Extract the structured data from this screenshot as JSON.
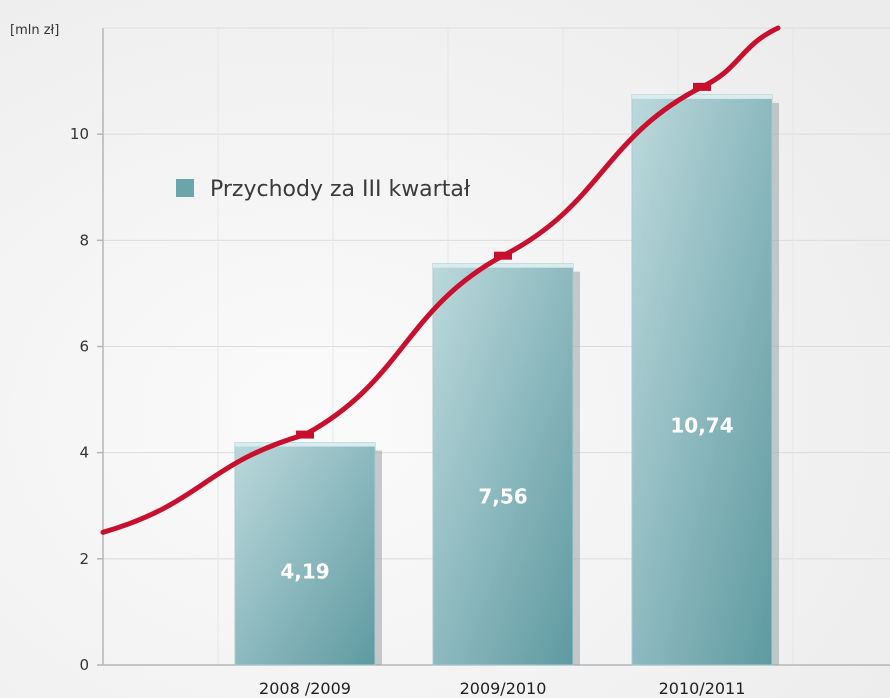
{
  "chart_data": {
    "type": "bar",
    "unit_label": "[mln zł]",
    "categories": [
      "2008 /2009",
      "2009/2010",
      "2010/2011"
    ],
    "series": [
      {
        "name": "Przychody za III kwartał",
        "values": [
          4.19,
          7.56,
          10.74
        ]
      }
    ],
    "data_labels": [
      "4,19",
      "7,56",
      "10,74"
    ],
    "y_ticks": [
      "0",
      "2",
      "4",
      "6",
      "8",
      "10"
    ],
    "ylim": [
      0,
      12
    ],
    "grid": true,
    "legend_placement": "upper-left",
    "trend_line": {
      "color": "#c8102e",
      "direction": "rising"
    },
    "colors": {
      "bar_light": "#bcd9dc",
      "bar_dark": "#5e9aa1",
      "bar_shadow": "#9aa3a5",
      "trend": "#c8102e",
      "grid": "#dcdcdc",
      "axis": "#b5b5b5",
      "legend_swatch": "#6aa5ac"
    }
  }
}
